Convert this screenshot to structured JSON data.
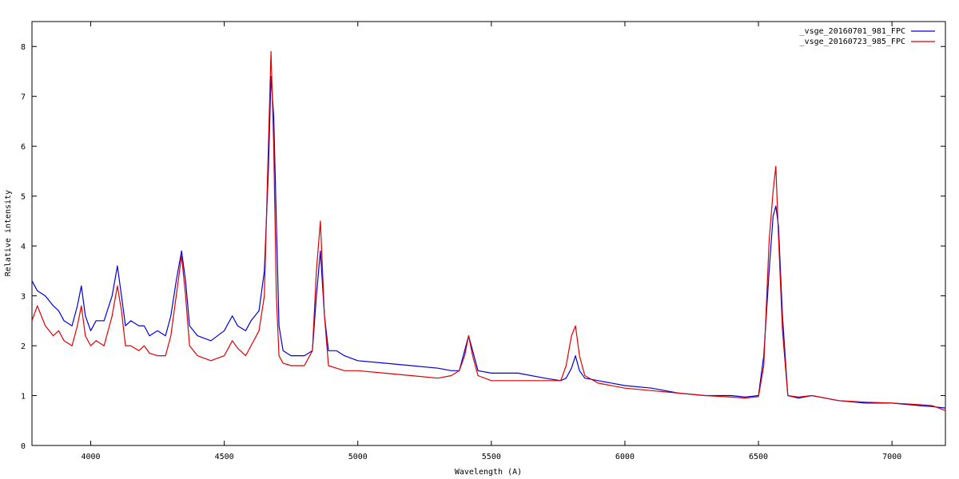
{
  "chart_data": {
    "type": "line",
    "title": "",
    "xlabel": "Wavelength (A)",
    "ylabel": "Relative intensity",
    "xlim": [
      3780,
      7200
    ],
    "ylim": [
      0,
      8.5
    ],
    "x_ticks": [
      4000,
      4500,
      5000,
      5500,
      6000,
      6500,
      7000
    ],
    "y_ticks": [
      0,
      1,
      2,
      3,
      4,
      5,
      6,
      7,
      8
    ],
    "grid": false,
    "legend_position": "top-right",
    "series": [
      {
        "name": "_vsge_20160701_981_FPC",
        "color": "#0000dd",
        "x": [
          3780,
          3800,
          3830,
          3860,
          3880,
          3900,
          3930,
          3950,
          3965,
          3980,
          4000,
          4020,
          4050,
          4080,
          4100,
          4115,
          4130,
          4150,
          4180,
          4200,
          4220,
          4250,
          4280,
          4300,
          4320,
          4340,
          4355,
          4370,
          4400,
          4450,
          4500,
          4530,
          4550,
          4580,
          4600,
          4630,
          4650,
          4665,
          4675,
          4685,
          4695,
          4705,
          4720,
          4750,
          4800,
          4830,
          4845,
          4860,
          4875,
          4890,
          4920,
          4950,
          5000,
          5100,
          5200,
          5300,
          5350,
          5380,
          5400,
          5415,
          5430,
          5450,
          5500,
          5600,
          5700,
          5760,
          5780,
          5800,
          5815,
          5830,
          5850,
          5900,
          6000,
          6100,
          6200,
          6300,
          6400,
          6450,
          6500,
          6520,
          6540,
          6555,
          6565,
          6575,
          6590,
          6610,
          6650,
          6700,
          6800,
          6900,
          7000,
          7100,
          7150,
          7200
        ],
        "y": [
          3.3,
          3.1,
          3.0,
          2.8,
          2.7,
          2.5,
          2.4,
          2.8,
          3.2,
          2.6,
          2.3,
          2.5,
          2.5,
          3.0,
          3.6,
          3.0,
          2.4,
          2.5,
          2.4,
          2.4,
          2.2,
          2.3,
          2.2,
          2.6,
          3.3,
          3.9,
          3.3,
          2.4,
          2.2,
          2.1,
          2.3,
          2.6,
          2.4,
          2.3,
          2.5,
          2.7,
          3.5,
          5.5,
          7.4,
          6.6,
          4.5,
          2.4,
          1.9,
          1.8,
          1.8,
          1.9,
          3.0,
          3.9,
          2.6,
          1.9,
          1.9,
          1.8,
          1.7,
          1.65,
          1.6,
          1.55,
          1.5,
          1.5,
          1.9,
          2.2,
          1.9,
          1.5,
          1.45,
          1.45,
          1.35,
          1.3,
          1.35,
          1.55,
          1.8,
          1.5,
          1.35,
          1.3,
          1.2,
          1.15,
          1.05,
          1.0,
          1.0,
          0.97,
          1.0,
          1.8,
          3.5,
          4.6,
          4.8,
          4.4,
          2.6,
          1.0,
          0.95,
          1.0,
          0.9,
          0.85,
          0.85,
          0.8,
          0.78,
          0.75
        ]
      },
      {
        "name": "_vsge_20160723_985_FPC",
        "color": "#dd0000",
        "x": [
          3780,
          3800,
          3830,
          3860,
          3880,
          3900,
          3930,
          3950,
          3965,
          3980,
          4000,
          4020,
          4050,
          4080,
          4100,
          4115,
          4130,
          4150,
          4180,
          4200,
          4220,
          4250,
          4280,
          4300,
          4320,
          4340,
          4355,
          4370,
          4400,
          4450,
          4500,
          4530,
          4550,
          4580,
          4600,
          4630,
          4650,
          4665,
          4675,
          4685,
          4695,
          4705,
          4720,
          4750,
          4800,
          4830,
          4845,
          4860,
          4875,
          4890,
          4920,
          4950,
          5000,
          5100,
          5200,
          5300,
          5350,
          5380,
          5400,
          5415,
          5430,
          5450,
          5500,
          5600,
          5700,
          5760,
          5780,
          5800,
          5815,
          5830,
          5850,
          5900,
          6000,
          6100,
          6200,
          6300,
          6400,
          6450,
          6500,
          6520,
          6540,
          6555,
          6565,
          6575,
          6590,
          6610,
          6650,
          6700,
          6800,
          6900,
          7000,
          7100,
          7150,
          7200
        ],
        "y": [
          2.5,
          2.8,
          2.4,
          2.2,
          2.3,
          2.1,
          2.0,
          2.4,
          2.8,
          2.2,
          2.0,
          2.1,
          2.0,
          2.6,
          3.2,
          2.7,
          2.0,
          2.0,
          1.9,
          2.0,
          1.85,
          1.8,
          1.8,
          2.2,
          3.0,
          3.8,
          3.0,
          2.0,
          1.8,
          1.7,
          1.8,
          2.1,
          1.95,
          1.8,
          2.0,
          2.3,
          3.0,
          6.0,
          7.9,
          6.0,
          3.0,
          1.8,
          1.65,
          1.6,
          1.6,
          1.9,
          3.5,
          4.5,
          2.6,
          1.6,
          1.55,
          1.5,
          1.5,
          1.45,
          1.4,
          1.35,
          1.4,
          1.5,
          1.8,
          2.2,
          1.8,
          1.4,
          1.3,
          1.3,
          1.3,
          1.3,
          1.6,
          2.2,
          2.4,
          1.8,
          1.4,
          1.25,
          1.15,
          1.1,
          1.05,
          1.0,
          0.97,
          0.95,
          0.98,
          1.6,
          4.1,
          5.1,
          5.6,
          4.2,
          2.3,
          1.0,
          0.97,
          1.0,
          0.9,
          0.87,
          0.85,
          0.82,
          0.8,
          0.7
        ]
      }
    ]
  }
}
